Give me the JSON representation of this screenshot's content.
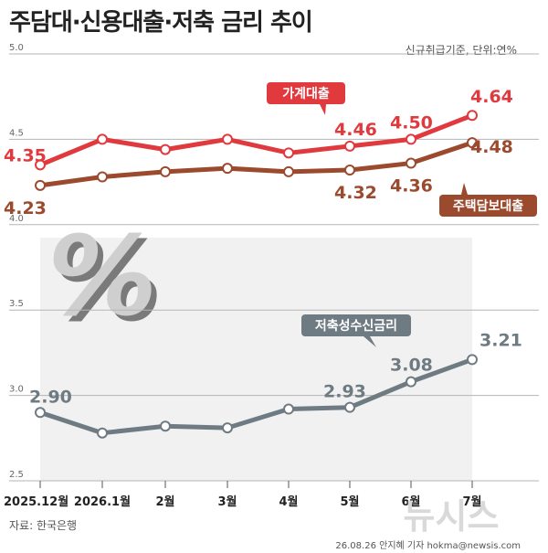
{
  "header": {
    "title": "주담대·신용대출·저축 금리 추이",
    "subtitle": "신규취급기준, 단위:연%"
  },
  "footer": {
    "source": "자료: 한국은행",
    "credit": "26.08.26 안지혜 기자 hokma@newsis.com",
    "watermark": "뉴시스"
  },
  "colors": {
    "household": "#e0393e",
    "mortgage": "#9c4a2e",
    "savings": "#6f7b82",
    "plot_bg": "#f1f1f1"
  },
  "chart_data": {
    "type": "line",
    "title": "주담대·신용대출·저축 금리 추이",
    "categories": [
      "2025.12월",
      "2026.1월",
      "2월",
      "3월",
      "4월",
      "5월",
      "6월",
      "7월"
    ],
    "ylim": [
      2.5,
      5.0
    ],
    "yticks": [
      "5.0",
      "4.5",
      "4.0",
      "3.5",
      "3.0",
      "2.5"
    ],
    "grid": true,
    "series": [
      {
        "name": "가계대출",
        "values": [
          4.35,
          4.5,
          4.44,
          4.5,
          4.42,
          4.46,
          4.5,
          4.64
        ],
        "labels": [
          "4.35",
          "",
          "",
          "",
          "",
          "4.46",
          "4.50",
          "4.64"
        ]
      },
      {
        "name": "주택담보대출",
        "values": [
          4.23,
          4.28,
          4.31,
          4.33,
          4.31,
          4.32,
          4.36,
          4.48
        ],
        "labels": [
          "4.23",
          "",
          "",
          "",
          "",
          "4.32",
          "4.36",
          "4.48"
        ]
      },
      {
        "name": "저축성수신금리",
        "values": [
          2.9,
          2.78,
          2.82,
          2.81,
          2.92,
          2.93,
          3.08,
          3.21
        ],
        "labels": [
          "2.90",
          "",
          "",
          "",
          "",
          "2.93",
          "3.08",
          "3.21"
        ]
      }
    ]
  }
}
